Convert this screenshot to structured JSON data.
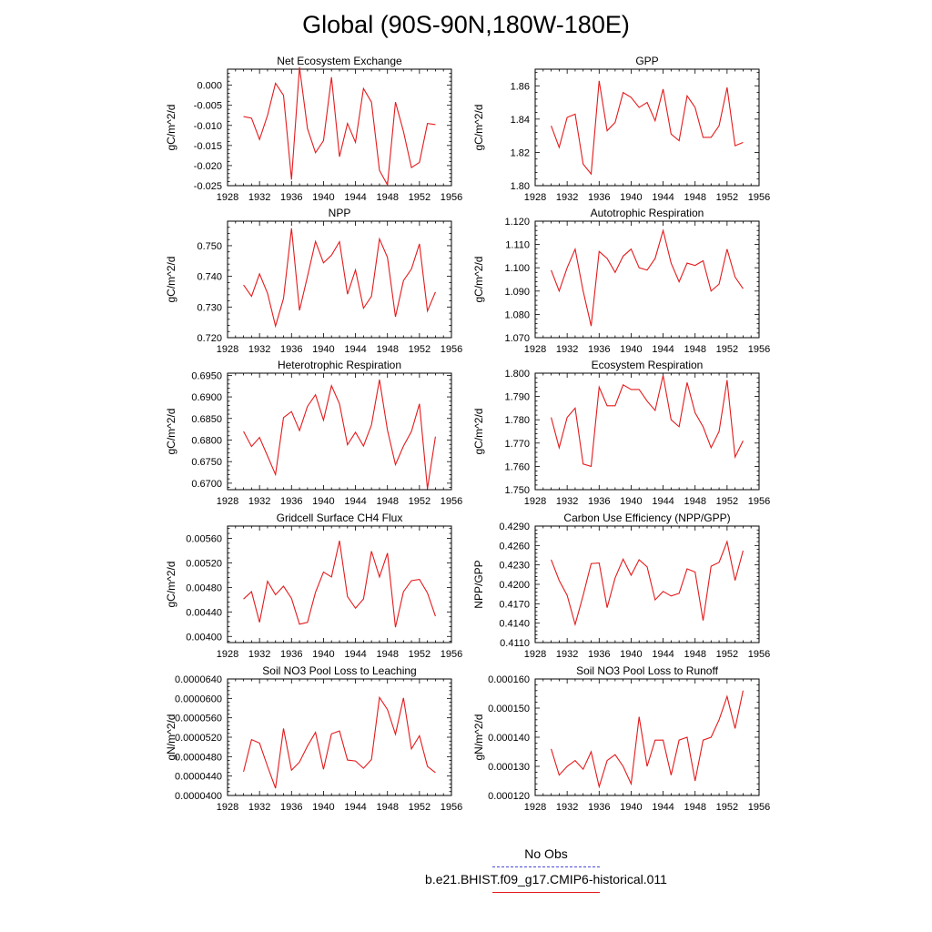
{
  "title": "Global (90S-90N,180W-180E)",
  "legend": [
    {
      "label": "No Obs",
      "color": "#4a4ad8",
      "style": "dashed"
    },
    {
      "label": "b.e21.BHIST.f09_g17.CMIP6-historical.011",
      "color": "#e41a1c",
      "style": "solid"
    }
  ],
  "chart_data": [
    {
      "type": "line",
      "title": "Net Ecosystem Exchange",
      "ylabel": "gC/m^2/d",
      "xlim": [
        1928,
        1956
      ],
      "ylim": [
        -0.025,
        0.004
      ],
      "xticks": [
        "1928",
        "1932",
        "1936",
        "1940",
        "1944",
        "1948",
        "1952",
        "1956"
      ],
      "yticks": [
        "0.000",
        "-0.005",
        "-0.010",
        "-0.015",
        "-0.020",
        "-0.025"
      ],
      "series": [
        {
          "color": "#e41a1c",
          "x": [
            1930,
            1931,
            1932,
            1933,
            1934,
            1935,
            1936,
            1937,
            1938,
            1939,
            1940,
            1941,
            1942,
            1943,
            1944,
            1945,
            1946,
            1947,
            1948,
            1949,
            1950,
            1951,
            1952,
            1953,
            1954
          ],
          "y": [
            -0.0078,
            -0.0082,
            -0.0135,
            -0.0075,
            0.0005,
            -0.0025,
            -0.0235,
            0.0045,
            -0.0108,
            -0.0168,
            -0.0138,
            0.002,
            -0.0178,
            -0.0095,
            -0.0142,
            -0.0008,
            -0.0042,
            -0.0212,
            -0.0248,
            -0.0042,
            -0.0115,
            -0.0205,
            -0.0192,
            -0.0095,
            -0.0098
          ]
        }
      ]
    },
    {
      "type": "line",
      "title": "GPP",
      "ylabel": "gC/m^2/d",
      "xlim": [
        1928,
        1956
      ],
      "ylim": [
        1.8,
        1.87
      ],
      "xticks": [
        "1928",
        "1932",
        "1936",
        "1940",
        "1944",
        "1948",
        "1952",
        "1956"
      ],
      "yticks": [
        "1.86",
        "1.84",
        "1.82",
        "1.80"
      ],
      "series": [
        {
          "color": "#e41a1c",
          "x": [
            1930,
            1931,
            1932,
            1933,
            1934,
            1935,
            1936,
            1937,
            1938,
            1939,
            1940,
            1941,
            1942,
            1943,
            1944,
            1945,
            1946,
            1947,
            1948,
            1949,
            1950,
            1951,
            1952,
            1953,
            1954
          ],
          "y": [
            1.836,
            1.823,
            1.841,
            1.843,
            1.813,
            1.807,
            1.863,
            1.833,
            1.838,
            1.856,
            1.853,
            1.847,
            1.85,
            1.839,
            1.858,
            1.831,
            1.827,
            1.854,
            1.847,
            1.829,
            1.829,
            1.836,
            1.859,
            1.824,
            1.826
          ]
        }
      ]
    },
    {
      "type": "line",
      "title": "NPP",
      "ylabel": "gC/m^2/d",
      "xlim": [
        1928,
        1956
      ],
      "ylim": [
        0.72,
        0.758
      ],
      "xticks": [
        "1928",
        "1932",
        "1936",
        "1940",
        "1944",
        "1948",
        "1952",
        "1956"
      ],
      "yticks": [
        "0.750",
        "0.740",
        "0.730",
        "0.720"
      ],
      "series": [
        {
          "color": "#e41a1c",
          "x": [
            1930,
            1931,
            1932,
            1933,
            1934,
            1935,
            1936,
            1937,
            1938,
            1939,
            1940,
            1941,
            1942,
            1943,
            1944,
            1945,
            1946,
            1947,
            1948,
            1949,
            1950,
            1951,
            1952,
            1953,
            1954
          ],
          "y": [
            0.7372,
            0.7335,
            0.7408,
            0.7345,
            0.7238,
            0.7328,
            0.7557,
            0.7289,
            0.74,
            0.7514,
            0.7444,
            0.7469,
            0.7513,
            0.7342,
            0.7421,
            0.7296,
            0.7335,
            0.7522,
            0.7462,
            0.7268,
            0.7386,
            0.7424,
            0.7506,
            0.7287,
            0.7349
          ]
        }
      ]
    },
    {
      "type": "line",
      "title": "Autotrophic Respiration",
      "ylabel": "gC/m^2/d",
      "xlim": [
        1928,
        1956
      ],
      "ylim": [
        1.07,
        1.12
      ],
      "xticks": [
        "1928",
        "1932",
        "1936",
        "1940",
        "1944",
        "1948",
        "1952",
        "1956"
      ],
      "yticks": [
        "1.120",
        "1.110",
        "1.100",
        "1.090",
        "1.080",
        "1.070"
      ],
      "series": [
        {
          "color": "#e41a1c",
          "x": [
            1930,
            1931,
            1932,
            1933,
            1934,
            1935,
            1936,
            1937,
            1938,
            1939,
            1940,
            1941,
            1942,
            1943,
            1944,
            1945,
            1946,
            1947,
            1948,
            1949,
            1950,
            1951,
            1952,
            1953,
            1954
          ],
          "y": [
            1.099,
            1.09,
            1.1,
            1.108,
            1.09,
            1.075,
            1.107,
            1.104,
            1.098,
            1.105,
            1.108,
            1.1,
            1.099,
            1.104,
            1.116,
            1.102,
            1.094,
            1.102,
            1.101,
            1.103,
            1.09,
            1.093,
            1.108,
            1.096,
            1.091
          ]
        }
      ]
    },
    {
      "type": "line",
      "title": "Heterotrophic Respiration",
      "ylabel": "gC/m^2/d",
      "xlim": [
        1928,
        1956
      ],
      "ylim": [
        0.6685,
        0.6955
      ],
      "xticks": [
        "1928",
        "1932",
        "1936",
        "1940",
        "1944",
        "1948",
        "1952",
        "1956"
      ],
      "yticks": [
        "0.6950",
        "0.6900",
        "0.6850",
        "0.6800",
        "0.6750",
        "0.6700"
      ],
      "series": [
        {
          "color": "#e41a1c",
          "x": [
            1930,
            1931,
            1932,
            1933,
            1934,
            1935,
            1936,
            1937,
            1938,
            1939,
            1940,
            1941,
            1942,
            1943,
            1944,
            1945,
            1946,
            1947,
            1948,
            1949,
            1950,
            1951,
            1952,
            1953,
            1954
          ],
          "y": [
            0.682,
            0.6785,
            0.6806,
            0.6763,
            0.672,
            0.6852,
            0.6866,
            0.6822,
            0.6878,
            0.6905,
            0.6846,
            0.6926,
            0.6884,
            0.6789,
            0.6818,
            0.6786,
            0.6835,
            0.694,
            0.6823,
            0.6743,
            0.6786,
            0.682,
            0.6884,
            0.6687,
            0.6808
          ]
        }
      ]
    },
    {
      "type": "line",
      "title": "Ecosystem Respiration",
      "ylabel": "gC/m^2/d",
      "xlim": [
        1928,
        1956
      ],
      "ylim": [
        1.75,
        1.8
      ],
      "xticks": [
        "1928",
        "1932",
        "1936",
        "1940",
        "1944",
        "1948",
        "1952",
        "1956"
      ],
      "yticks": [
        "1.800",
        "1.790",
        "1.780",
        "1.770",
        "1.760",
        "1.750"
      ],
      "series": [
        {
          "color": "#e41a1c",
          "x": [
            1930,
            1931,
            1932,
            1933,
            1934,
            1935,
            1936,
            1937,
            1938,
            1939,
            1940,
            1941,
            1942,
            1943,
            1944,
            1945,
            1946,
            1947,
            1948,
            1949,
            1950,
            1951,
            1952,
            1953,
            1954
          ],
          "y": [
            1.781,
            1.768,
            1.781,
            1.785,
            1.761,
            1.76,
            1.794,
            1.786,
            1.786,
            1.795,
            1.793,
            1.793,
            1.788,
            1.784,
            1.799,
            1.78,
            1.777,
            1.796,
            1.783,
            1.777,
            1.768,
            1.775,
            1.797,
            1.764,
            1.771
          ]
        }
      ]
    },
    {
      "type": "line",
      "title": "Gridcell Surface CH4 Flux",
      "ylabel": "gC/m^2/d",
      "xlim": [
        1928,
        1956
      ],
      "ylim": [
        0.0039,
        0.0058
      ],
      "xticks": [
        "1928",
        "1932",
        "1936",
        "1940",
        "1944",
        "1948",
        "1952",
        "1956"
      ],
      "yticks": [
        "0.00560",
        "0.00520",
        "0.00480",
        "0.00440",
        "0.00400"
      ],
      "series": [
        {
          "color": "#e41a1c",
          "x": [
            1930,
            1931,
            1932,
            1933,
            1934,
            1935,
            1936,
            1937,
            1938,
            1939,
            1940,
            1941,
            1942,
            1943,
            1944,
            1945,
            1946,
            1947,
            1948,
            1949,
            1950,
            1951,
            1952,
            1953,
            1954
          ],
          "y": [
            0.00461,
            0.00473,
            0.00423,
            0.0049,
            0.00468,
            0.00482,
            0.00462,
            0.0042,
            0.00423,
            0.00472,
            0.00505,
            0.00497,
            0.00556,
            0.00465,
            0.00446,
            0.00461,
            0.00539,
            0.00497,
            0.00536,
            0.00415,
            0.00473,
            0.00491,
            0.00493,
            0.00471,
            0.00433
          ]
        }
      ]
    },
    {
      "type": "line",
      "title": "Carbon Use Efficiency (NPP/GPP)",
      "ylabel": "NPP/GPP",
      "xlim": [
        1928,
        1956
      ],
      "ylim": [
        0.411,
        0.429
      ],
      "xticks": [
        "1928",
        "1932",
        "1936",
        "1940",
        "1944",
        "1948",
        "1952",
        "1956"
      ],
      "yticks": [
        "0.4290",
        "0.4260",
        "0.4230",
        "0.4200",
        "0.4170",
        "0.4140",
        "0.4110"
      ],
      "series": [
        {
          "color": "#e41a1c",
          "x": [
            1930,
            1931,
            1932,
            1933,
            1934,
            1935,
            1936,
            1937,
            1938,
            1939,
            1940,
            1941,
            1942,
            1943,
            1944,
            1945,
            1946,
            1947,
            1948,
            1949,
            1950,
            1951,
            1952,
            1953,
            1954
          ],
          "y": [
            0.4238,
            0.4206,
            0.4183,
            0.4138,
            0.4183,
            0.4232,
            0.4233,
            0.4164,
            0.421,
            0.4239,
            0.4214,
            0.4238,
            0.4227,
            0.4176,
            0.4189,
            0.4182,
            0.4186,
            0.4224,
            0.4219,
            0.4144,
            0.4228,
            0.4234,
            0.4266,
            0.4206,
            0.4252
          ]
        }
      ]
    },
    {
      "type": "line",
      "title": "Soil NO3 Pool Loss to Leaching",
      "ylabel": "gN/m^2/d",
      "xlim": [
        1928,
        1956
      ],
      "ylim": [
        4e-05,
        6.4e-05
      ],
      "xticks": [
        "1928",
        "1932",
        "1936",
        "1940",
        "1944",
        "1948",
        "1952",
        "1956"
      ],
      "yticks": [
        "0.0000640",
        "0.0000600",
        "0.0000560",
        "0.0000520",
        "0.0000480",
        "0.0000440",
        "0.0000400"
      ],
      "series": [
        {
          "color": "#e41a1c",
          "x": [
            1930,
            1931,
            1932,
            1933,
            1934,
            1935,
            1936,
            1937,
            1938,
            1939,
            1940,
            1941,
            1942,
            1943,
            1944,
            1945,
            1946,
            1947,
            1948,
            1949,
            1950,
            1951,
            1952,
            1953,
            1954
          ],
          "y": [
            4.49e-05,
            5.15e-05,
            5.08e-05,
            4.6e-05,
            4.15e-05,
            5.38e-05,
            4.52e-05,
            4.69e-05,
            5.02e-05,
            5.3e-05,
            4.54e-05,
            5.27e-05,
            5.33e-05,
            4.73e-05,
            4.71e-05,
            4.56e-05,
            4.74e-05,
            6.02e-05,
            5.77e-05,
            5.26e-05,
            6.01e-05,
            4.96e-05,
            5.23e-05,
            4.6e-05,
            4.47e-05
          ]
        }
      ]
    },
    {
      "type": "line",
      "title": "Soil NO3 Pool Loss to Runoff",
      "ylabel": "gN/m^2/d",
      "xlim": [
        1928,
        1956
      ],
      "ylim": [
        0.00012,
        0.00016
      ],
      "xticks": [
        "1928",
        "1932",
        "1936",
        "1940",
        "1944",
        "1948",
        "1952",
        "1956"
      ],
      "yticks": [
        "0.000160",
        "0.000150",
        "0.000140",
        "0.000130",
        "0.000120"
      ],
      "series": [
        {
          "color": "#e41a1c",
          "x": [
            1930,
            1931,
            1932,
            1933,
            1934,
            1935,
            1936,
            1937,
            1938,
            1939,
            1940,
            1941,
            1942,
            1943,
            1944,
            1945,
            1946,
            1947,
            1948,
            1949,
            1950,
            1951,
            1952,
            1953,
            1954
          ],
          "y": [
            0.000136,
            0.000127,
            0.00013,
            0.000132,
            0.000129,
            0.000135,
            0.000123,
            0.000132,
            0.000134,
            0.00013,
            0.000124,
            0.000147,
            0.00013,
            0.000139,
            0.000139,
            0.000127,
            0.000139,
            0.00014,
            0.000125,
            0.000139,
            0.00014,
            0.000146,
            0.000154,
            0.000143,
            0.000156
          ]
        }
      ]
    }
  ]
}
